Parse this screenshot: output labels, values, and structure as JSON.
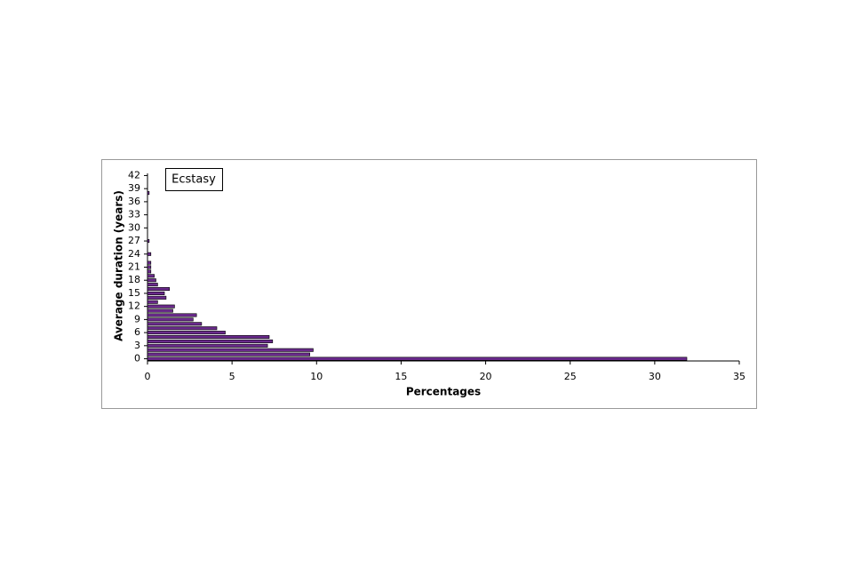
{
  "chart_data": {
    "type": "bar",
    "orientation": "horizontal",
    "x_label": "Percentages",
    "y_label": "Average duration (years)",
    "categories": [
      0,
      null,
      null,
      3,
      null,
      null,
      6,
      null,
      null,
      9,
      null,
      null,
      12,
      null,
      null,
      15,
      null,
      null,
      18,
      null,
      null,
      21,
      null,
      null,
      24,
      null,
      null,
      27,
      null,
      null,
      30,
      null,
      null,
      33,
      null,
      null,
      36,
      null,
      null,
      39,
      null,
      null,
      42
    ],
    "series": [
      {
        "name": "Ecstasy",
        "color": "#6a2a8c",
        "values": [
          31.9,
          9.6,
          9.8,
          7.1,
          7.4,
          7.2,
          4.6,
          4.1,
          3.2,
          2.7,
          2.9,
          1.5,
          1.6,
          0.6,
          1.1,
          1.0,
          1.3,
          0.6,
          0.5,
          0.4,
          0.2,
          0.2,
          0.2,
          0,
          0.2,
          0,
          0,
          0.1,
          0,
          0,
          0,
          0,
          0,
          0,
          0,
          0,
          0,
          0,
          0.1,
          0,
          0,
          0,
          0
        ]
      }
    ],
    "xlim": [
      0,
      35
    ],
    "xticks": [
      0,
      5,
      10,
      15,
      20,
      25,
      30,
      35
    ],
    "legend": "top-left"
  }
}
